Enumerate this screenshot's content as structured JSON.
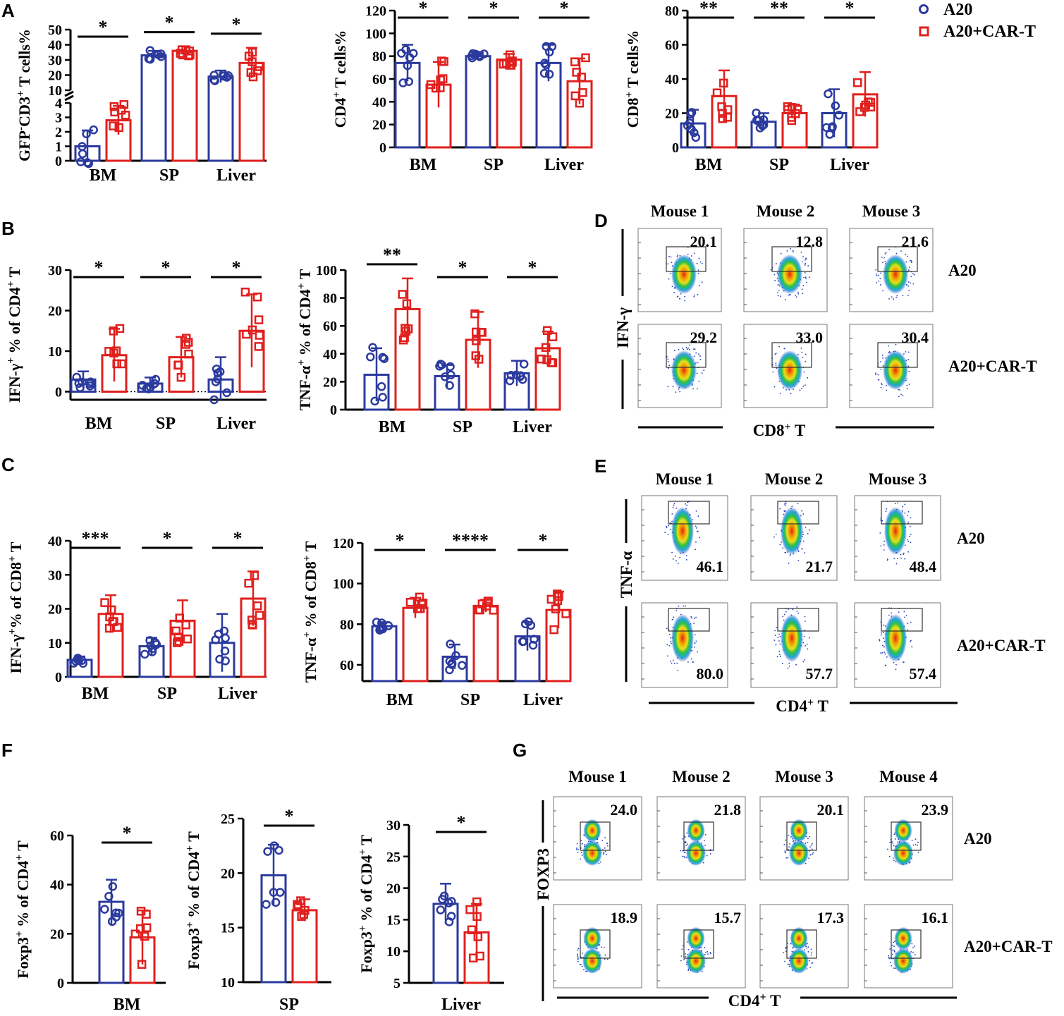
{
  "colors": {
    "a20": "#2b3a9e",
    "cart": "#e0201e",
    "axis": "#000000"
  },
  "legend": [
    {
      "label": "A20",
      "marker": "circle"
    },
    {
      "label": "A20+CAR-T",
      "marker": "square"
    }
  ],
  "panel_labels": [
    "A",
    "B",
    "C",
    "D",
    "E",
    "F",
    "G"
  ],
  "chart_data": [
    {
      "id": "A1",
      "type": "bar",
      "panel": "A",
      "title": "",
      "ylabel": "GFP⁻CD3⁺ T cells%",
      "categories": [
        "BM",
        "SP",
        "Liver"
      ],
      "series": [
        {
          "name": "A20",
          "values": [
            1.0,
            33,
            19
          ],
          "sd": [
            1.1,
            3,
            4
          ]
        },
        {
          "name": "A20+CAR-T",
          "values": [
            2.8,
            36,
            28
          ],
          "sd": [
            1.0,
            3,
            10
          ]
        }
      ],
      "axis_break": {
        "lower_ylim": [
          0,
          4
        ],
        "upper_ylim": [
          10,
          50
        ]
      },
      "ytick_labels": [
        "0",
        "1",
        "2",
        "3",
        "4",
        "10",
        "20",
        "30",
        "40",
        "50"
      ],
      "significance": [
        "*",
        "*",
        "*"
      ]
    },
    {
      "id": "A2",
      "type": "bar",
      "panel": "A",
      "title": "",
      "ylabel": "CD4⁺ T cells%",
      "categories": [
        "BM",
        "SP",
        "Liver"
      ],
      "series": [
        {
          "name": "A20",
          "values": [
            74,
            80,
            74
          ],
          "sd": [
            16,
            3,
            16
          ]
        },
        {
          "name": "A20+CAR-T",
          "values": [
            55,
            77,
            58
          ],
          "sd": [
            20,
            5,
            20
          ]
        }
      ],
      "ylim": [
        0,
        120
      ],
      "ytick_labels": [
        "0",
        "20",
        "40",
        "60",
        "80",
        "100",
        "120"
      ],
      "significance": [
        "*",
        "*",
        "*"
      ]
    },
    {
      "id": "A3",
      "type": "bar",
      "panel": "A",
      "title": "",
      "ylabel": "CD8⁺ T cells%",
      "categories": [
        "BM",
        "SP",
        "Liver"
      ],
      "series": [
        {
          "name": "A20",
          "values": [
            14,
            15,
            20
          ],
          "sd": [
            8,
            5,
            14
          ]
        },
        {
          "name": "A20+CAR-T",
          "values": [
            30,
            20,
            31
          ],
          "sd": [
            15,
            5,
            13
          ]
        }
      ],
      "ylim": [
        0,
        80
      ],
      "ytick_labels": [
        "0",
        "20",
        "40",
        "60",
        "80"
      ],
      "significance": [
        "**",
        "**",
        "*"
      ]
    },
    {
      "id": "B1",
      "type": "bar",
      "panel": "B",
      "title": "",
      "ylabel": "IFN-γ⁺ % of CD4⁺ T",
      "categories": [
        "BM",
        "SP",
        "Liver"
      ],
      "series": [
        {
          "name": "A20",
          "values": [
            3,
            2,
            3
          ],
          "sd": [
            2,
            1.5,
            5.5
          ]
        },
        {
          "name": "A20+CAR-T",
          "values": [
            9,
            8.5,
            15
          ],
          "sd": [
            6.5,
            5,
            9
          ]
        }
      ],
      "ylim": [
        -2,
        30
      ],
      "ytick_labels": [
        "0",
        "10",
        "20",
        "30"
      ],
      "zero_line": "dotted",
      "significance": [
        "*",
        "*",
        "*"
      ]
    },
    {
      "id": "B2",
      "type": "bar",
      "panel": "B",
      "title": "",
      "ylabel": "TNF-α⁺ % of CD4⁺ T",
      "categories": [
        "BM",
        "SP",
        "Liver"
      ],
      "series": [
        {
          "name": "A20",
          "values": [
            25,
            24,
            26
          ],
          "sd": [
            19,
            8,
            9
          ]
        },
        {
          "name": "A20+CAR-T",
          "values": [
            72,
            50,
            44
          ],
          "sd": [
            22,
            20,
            12
          ]
        }
      ],
      "ylim": [
        0,
        100
      ],
      "ytick_labels": [
        "0",
        "20",
        "40",
        "60",
        "80",
        "100"
      ],
      "significance": [
        "**",
        "*",
        "*"
      ]
    },
    {
      "id": "C1",
      "type": "bar",
      "panel": "C",
      "title": "",
      "ylabel": "IFN-γ⁺% of CD8⁺ T",
      "categories": [
        "BM",
        "SP",
        "Liver"
      ],
      "series": [
        {
          "name": "A20",
          "values": [
            5,
            9,
            10
          ],
          "sd": [
            1,
            2.5,
            8.5
          ]
        },
        {
          "name": "A20+CAR-T",
          "values": [
            18.5,
            16.5,
            23
          ],
          "sd": [
            5.5,
            6,
            8
          ]
        }
      ],
      "ylim": [
        0,
        40
      ],
      "ytick_labels": [
        "0",
        "10",
        "20",
        "30",
        "40"
      ],
      "significance": [
        "***",
        "*",
        "*"
      ]
    },
    {
      "id": "C2",
      "type": "bar",
      "panel": "C",
      "title": "",
      "ylabel": "TNF-α⁺ % of CD8⁺ T",
      "categories": [
        "BM",
        "SP",
        "Liver"
      ],
      "series": [
        {
          "name": "A20",
          "values": [
            79,
            64,
            74
          ],
          "sd": [
            2,
            6,
            7
          ]
        },
        {
          "name": "A20+CAR-T",
          "values": [
            88,
            89,
            87
          ],
          "sd": [
            5,
            3,
            9
          ]
        }
      ],
      "ylim": [
        52,
        120
      ],
      "ytick_labels": [
        "60",
        "80",
        "100",
        "120"
      ],
      "significance": [
        "*",
        "****",
        "*"
      ]
    },
    {
      "id": "F1",
      "type": "bar",
      "panel": "F",
      "title": "",
      "ylabel": "Foxp3⁺ % of CD4⁺ T",
      "categories": [
        "BM"
      ],
      "series": [
        {
          "name": "A20",
          "values": [
            33
          ],
          "sd": [
            9
          ]
        },
        {
          "name": "A20+CAR-T",
          "values": [
            18.5
          ],
          "sd": [
            11
          ]
        }
      ],
      "ylim": [
        0,
        60
      ],
      "ytick_labels": [
        "0",
        "20",
        "40",
        "60"
      ],
      "significance": [
        "*"
      ]
    },
    {
      "id": "F2",
      "type": "bar",
      "panel": "F",
      "title": "",
      "ylabel": "Foxp3⁺ % of CD4⁺ T",
      "categories": [
        "SP"
      ],
      "series": [
        {
          "name": "A20",
          "values": [
            19.8
          ],
          "sd": [
            2.8
          ]
        },
        {
          "name": "A20+CAR-T",
          "values": [
            16.6
          ],
          "sd": [
            1
          ]
        }
      ],
      "ylim": [
        10,
        25
      ],
      "ytick_labels": [
        "10",
        "15",
        "20",
        "25"
      ],
      "significance": [
        "*"
      ]
    },
    {
      "id": "F3",
      "type": "bar",
      "panel": "F",
      "title": "",
      "ylabel": "Foxp3⁺ % of CD4⁺ T",
      "categories": [
        "Liver"
      ],
      "series": [
        {
          "name": "A20",
          "values": [
            17.5
          ],
          "sd": [
            3.2
          ]
        },
        {
          "name": "A20+CAR-T",
          "values": [
            13
          ],
          "sd": [
            4.5
          ]
        }
      ],
      "ylim": [
        5,
        30
      ],
      "ytick_labels": [
        "5",
        "10",
        "15",
        "20",
        "25",
        "30"
      ],
      "significance": [
        "*"
      ]
    },
    {
      "id": "D",
      "type": "flow_cytometry",
      "panel": "D",
      "mice": [
        "Mouse 1",
        "Mouse 2",
        "Mouse 3"
      ],
      "rows": [
        {
          "label": "A20",
          "values": [
            "20.1",
            "12.8",
            "21.6"
          ]
        },
        {
          "label": "A20+CAR-T",
          "values": [
            "29.2",
            "33.0",
            "30.4"
          ]
        }
      ],
      "ylabel": "IFN-γ",
      "xlabel": "CD8⁺ T"
    },
    {
      "id": "E",
      "type": "flow_cytometry",
      "panel": "E",
      "mice": [
        "Mouse 1",
        "Mouse 2",
        "Mouse 3"
      ],
      "rows": [
        {
          "label": "A20",
          "values": [
            "46.1",
            "21.7",
            "48.4"
          ]
        },
        {
          "label": "A20+CAR-T",
          "values": [
            "80.0",
            "57.7",
            "57.4"
          ]
        }
      ],
      "ylabel": "TNF-α",
      "xlabel": "CD4⁺ T"
    },
    {
      "id": "G",
      "type": "flow_cytometry",
      "panel": "G",
      "mice": [
        "Mouse 1",
        "Mouse 2",
        "Mouse 3",
        "Mouse 4"
      ],
      "rows": [
        {
          "label": "A20",
          "values": [
            "24.0",
            "21.8",
            "20.1",
            "23.9"
          ]
        },
        {
          "label": "A20+CAR-T",
          "values": [
            "18.9",
            "15.7",
            "17.3",
            "16.1"
          ]
        }
      ],
      "ylabel": "FOXP3",
      "xlabel": "CD4⁺ T"
    }
  ]
}
